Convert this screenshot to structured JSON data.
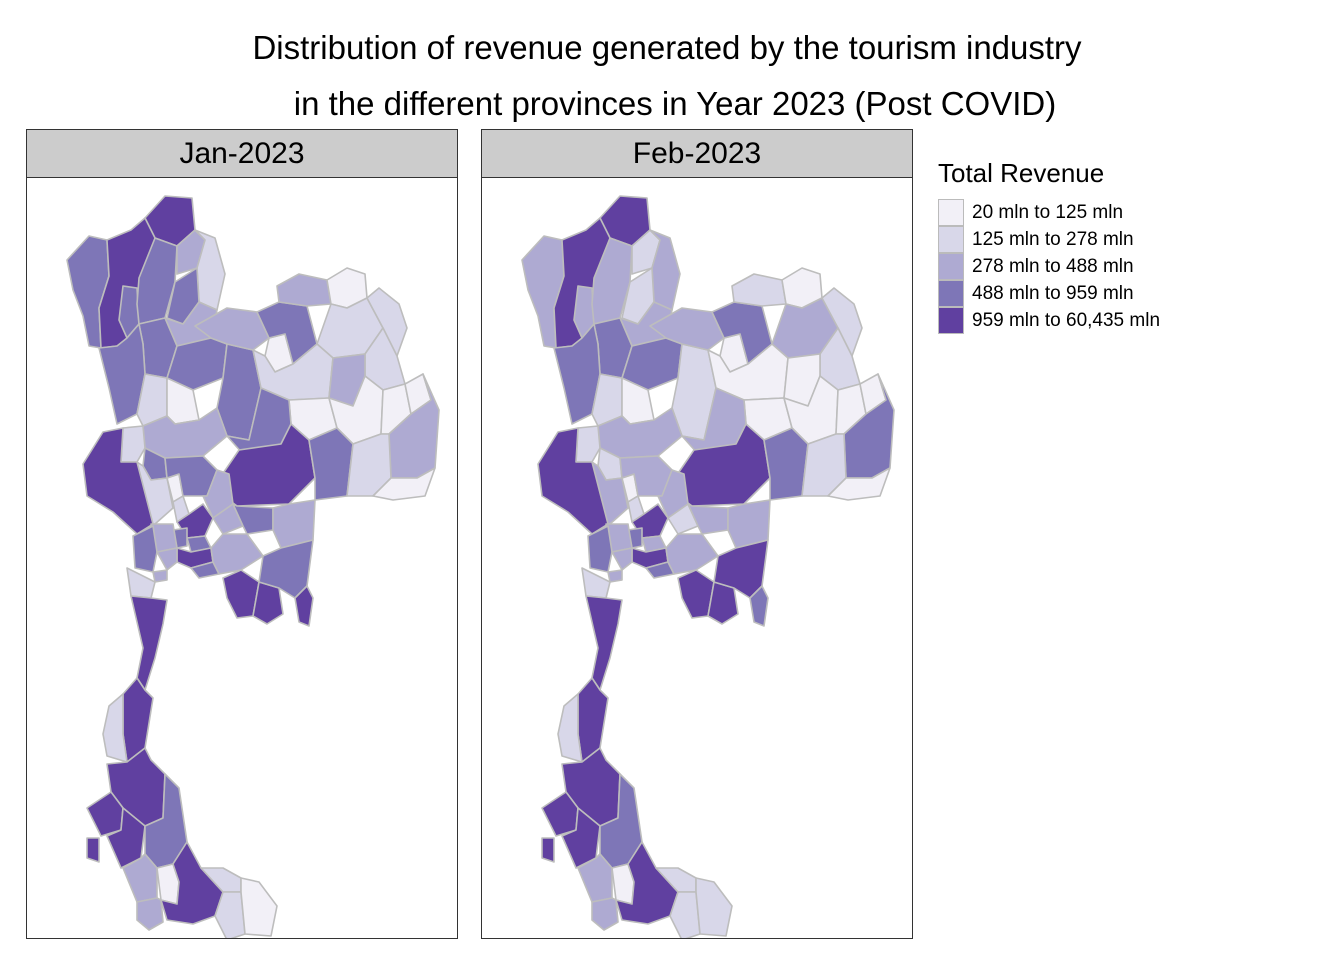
{
  "title": {
    "line1": "Distribution of revenue generated by the tourism industry",
    "line2": "in the different provinces in Year 2023 (Post COVID)"
  },
  "panels": [
    {
      "label": "Jan-2023",
      "region_classes": {
        "chiang_rai": 5,
        "mae_hong_son": 4,
        "chiang_mai": 5,
        "lamphun": 4,
        "lampang": 4,
        "phayao": 3,
        "nan": 2,
        "phrae": 4,
        "uttaradit": 3,
        "sukhothai": 4,
        "phitsanulok": 4,
        "tak": 4,
        "kamphaeng_phet": 2,
        "phichit": 1,
        "phetchabun": 4,
        "nakhon_sawan": 3,
        "uthai_thani": 2,
        "chainat": 4,
        "loei": 3,
        "nong_bua_lamphu": 1,
        "udon_thani": 4,
        "nong_khai": 3,
        "bueng_kan": 1,
        "sakon_nakhon": 2,
        "nakhon_phanom": 2,
        "mukdahan": 2,
        "khon_kaen": 2,
        "kalasin": 3,
        "maha_sarakham": 1,
        "roi_et": 1,
        "yasothon": 1,
        "amnat_charoen": 1,
        "ubon": 3,
        "chaiyaphum": 4,
        "nakhon_ratchasima": 5,
        "buriram": 4,
        "surin": 2,
        "sisaket": 1,
        "kanchanaburi": 5,
        "suphanburi": 2,
        "lopburi": 4,
        "saraburi": 3,
        "sing_buri": 1,
        "ang_thong": 2,
        "ayutthaya": 5,
        "ratchaburi": 4,
        "nakhon_pathom": 3,
        "bangkok": 5,
        "nonthaburi": 4,
        "pathum_thani": 4,
        "nakhon_nayok": 3,
        "prachinburi": 4,
        "sa_kaeo": 3,
        "chachoengsao": 3,
        "samut_prakan": 4,
        "samut_sakhon": 3,
        "samut_songkhram": 3,
        "phetchaburi": 2,
        "chonburi": 5,
        "rayong": 5,
        "chanthaburi": 4,
        "trat": 5,
        "prachuap": 5,
        "chumphon": 5,
        "ranong": 2,
        "surat_thani": 5,
        "phang_nga": 5,
        "phuket": 5,
        "krabi": 5,
        "nakhon_si_thammarat": 4,
        "trang": 3,
        "phatthalung": 1,
        "satun": 3,
        "songkhla": 5,
        "pattani": 2,
        "yala": 2,
        "narathiwat": 1
      }
    },
    {
      "label": "Feb-2023",
      "region_classes": {
        "chiang_rai": 5,
        "mae_hong_son": 3,
        "chiang_mai": 5,
        "lamphun": 3,
        "lampang": 3,
        "phayao": 2,
        "nan": 3,
        "phrae": 2,
        "uttaradit": 3,
        "sukhothai": 4,
        "phitsanulok": 4,
        "tak": 4,
        "kamphaeng_phet": 2,
        "phichit": 1,
        "phetchabun": 2,
        "nakhon_sawan": 3,
        "uthai_thani": 2,
        "chainat": 2,
        "loei": 3,
        "nong_bua_lamphu": 1,
        "udon_thani": 4,
        "nong_khai": 2,
        "bueng_kan": 1,
        "sakon_nakhon": 3,
        "nakhon_phanom": 2,
        "mukdahan": 2,
        "khon_kaen": 1,
        "kalasin": 1,
        "maha_sarakham": 1,
        "roi_et": 1,
        "yasothon": 1,
        "amnat_charoen": 1,
        "ubon": 4,
        "chaiyaphum": 3,
        "nakhon_ratchasima": 5,
        "buriram": 4,
        "surin": 2,
        "sisaket": 1,
        "kanchanaburi": 5,
        "suphanburi": 3,
        "lopburi": 3,
        "saraburi": 3,
        "sing_buri": 1,
        "ang_thong": 2,
        "ayutthaya": 5,
        "ratchaburi": 4,
        "nakhon_pathom": 3,
        "bangkok": 5,
        "nonthaburi": 4,
        "pathum_thani": 3,
        "nakhon_nayok": 2,
        "prachinburi": 3,
        "sa_kaeo": 3,
        "chachoengsao": 3,
        "samut_prakan": 4,
        "samut_sakhon": 3,
        "samut_songkhram": 3,
        "phetchaburi": 2,
        "chonburi": 5,
        "rayong": 5,
        "chanthaburi": 5,
        "trat": 4,
        "prachuap": 5,
        "chumphon": 5,
        "ranong": 2,
        "surat_thani": 5,
        "phang_nga": 5,
        "phuket": 5,
        "krabi": 5,
        "nakhon_si_thammarat": 4,
        "trang": 3,
        "phatthalung": 1,
        "satun": 3,
        "songkhla": 5,
        "pattani": 2,
        "yala": 2,
        "narathiwat": 2
      }
    }
  ],
  "legend": {
    "title": "Total Revenue",
    "items": [
      {
        "label": "20 mln to 125 mln",
        "color": "#f2f0f7"
      },
      {
        "label": "125 mln to 278 mln",
        "color": "#d8d7e9"
      },
      {
        "label": "278 mln to 488 mln",
        "color": "#aeaad2"
      },
      {
        "label": "488 mln to 959 mln",
        "color": "#7e76b7"
      },
      {
        "label": "959 mln to 60,435 mln",
        "color": "#6040a0"
      }
    ]
  },
  "colors": {
    "border": "#bdbdbd",
    "strip": "#cccccc",
    "frame": "#333333"
  }
}
